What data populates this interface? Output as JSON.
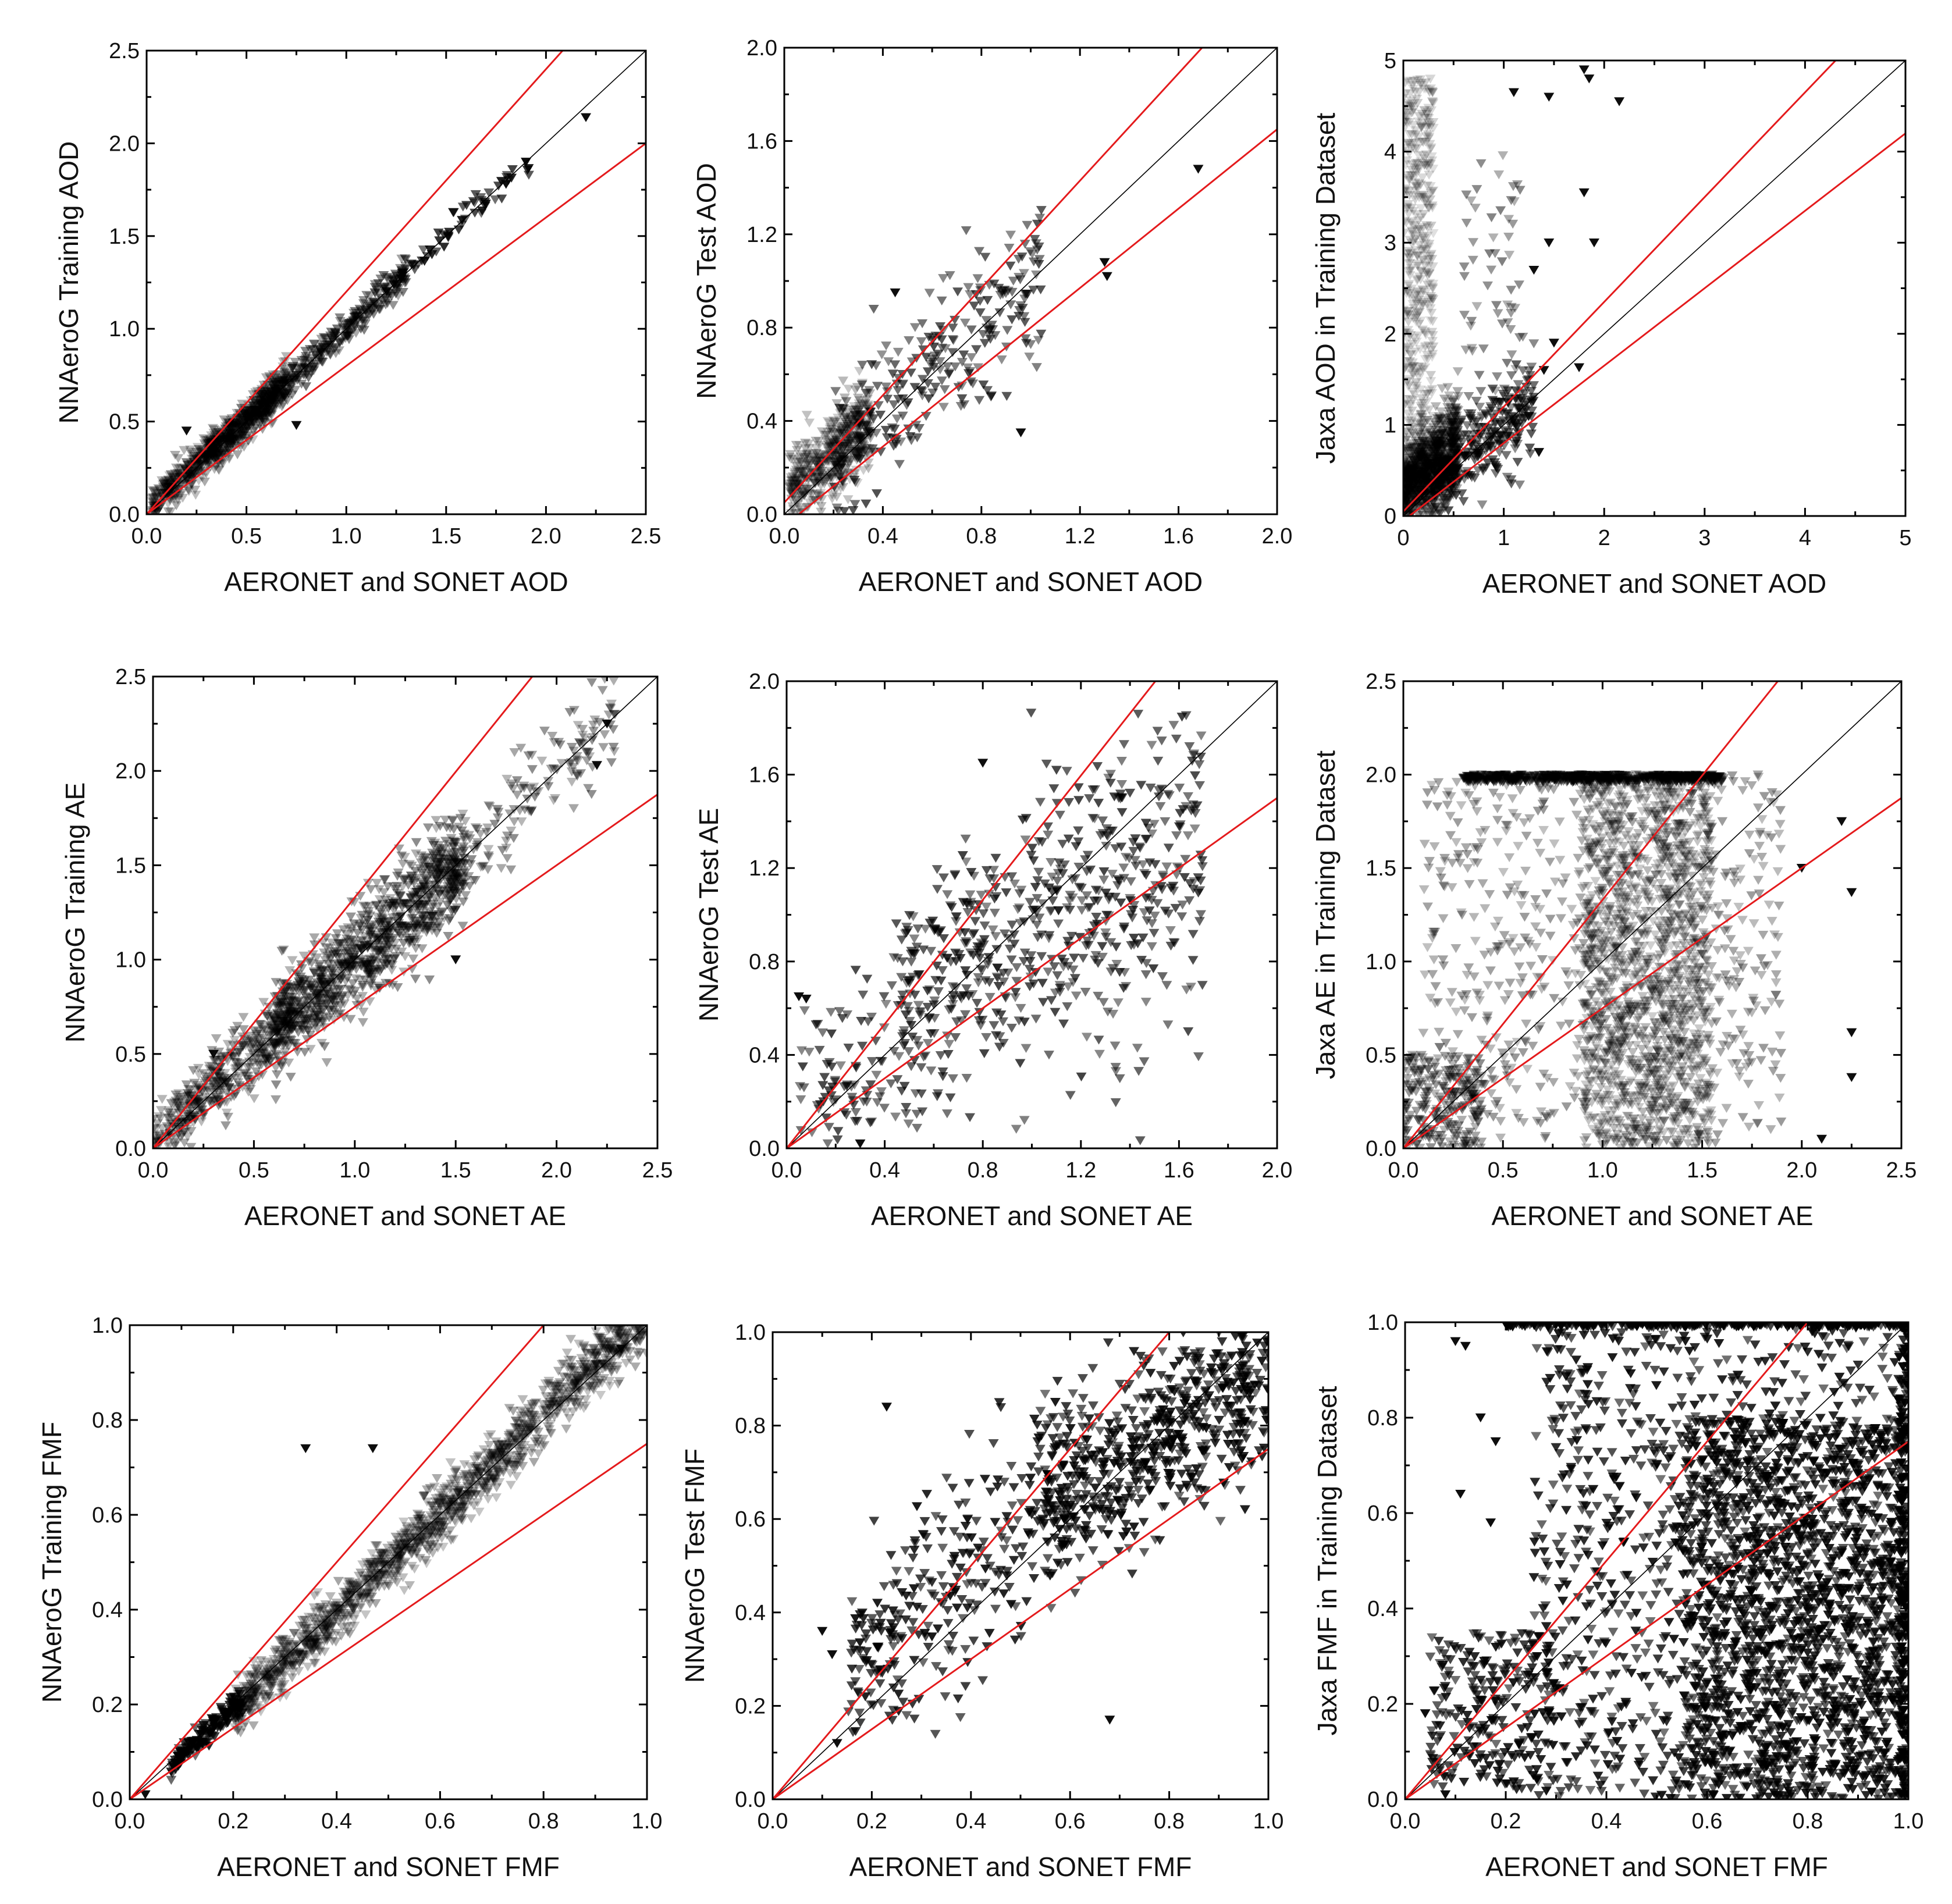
{
  "figure": {
    "colors": {
      "one_to_one": "#000000",
      "envelope": "#e41a1c",
      "marker": "#000000"
    },
    "marker": "downward-triangle"
  },
  "chart_data": [
    {
      "id": "training-aod",
      "type": "scatter",
      "title": "",
      "xlabel": "AERONET and SONET AOD",
      "ylabel": "NNAeroG Training AOD",
      "xlim": [
        0,
        2.5
      ],
      "ylim": [
        0,
        2.5
      ],
      "xticks": [
        "0.0",
        "0.5",
        "1.0",
        "1.5",
        "2.0",
        "2.5"
      ],
      "yticks": [
        "0.0",
        "0.5",
        "1.0",
        "1.5",
        "2.0",
        "2.5"
      ],
      "envelope_slopes": [
        1.2,
        0.8
      ],
      "one_to_one": true,
      "clusters": [
        {
          "x_range": [
            0.02,
            0.7
          ],
          "spread": 0.05,
          "slope": 1.0,
          "offset": 0.01,
          "n": 700,
          "opacity": 0.35
        },
        {
          "x_range": [
            0.3,
            1.3
          ],
          "spread": 0.035,
          "slope": 1.0,
          "offset": 0.0,
          "n": 420,
          "opacity": 0.55
        },
        {
          "x_range": [
            1.2,
            1.95
          ],
          "spread": 0.025,
          "slope": 1.0,
          "offset": 0.0,
          "n": 60,
          "opacity": 0.9
        }
      ],
      "points": [
        [
          2.2,
          2.14
        ],
        [
          1.8,
          1.78
        ],
        [
          1.9,
          1.9
        ],
        [
          0.75,
          0.48
        ],
        [
          0.2,
          0.45
        ]
      ]
    },
    {
      "id": "test-aod",
      "type": "scatter",
      "title": "",
      "xlabel": "AERONET and SONET AOD",
      "ylabel": "NNAeroG Test AOD",
      "xlim": [
        0,
        2.0
      ],
      "ylim": [
        0,
        2.0
      ],
      "xticks": [
        "0.0",
        "0.4",
        "0.8",
        "1.2",
        "1.6",
        "2.0"
      ],
      "yticks": [
        "0.0",
        "0.4",
        "0.8",
        "1.2",
        "1.6",
        "2.0"
      ],
      "envelope_slopes": [
        1.15,
        0.85
      ],
      "envelope_offsets": [
        0.05,
        -0.05
      ],
      "one_to_one": true,
      "clusters": [
        {
          "x_range": [
            0.02,
            0.35
          ],
          "spread": 0.09,
          "slope": 0.9,
          "offset": 0.08,
          "n": 520,
          "opacity": 0.3
        },
        {
          "x_range": [
            0.2,
            1.05
          ],
          "spread": 0.13,
          "slope": 0.95,
          "offset": 0.05,
          "n": 260,
          "opacity": 0.7
        }
      ],
      "points": [
        [
          1.68,
          1.48
        ],
        [
          1.3,
          1.08
        ],
        [
          1.31,
          1.02
        ],
        [
          0.96,
          0.35
        ],
        [
          0.45,
          0.95
        ]
      ]
    },
    {
      "id": "jaxa-aod",
      "type": "scatter",
      "title": "",
      "xlabel": "AERONET and SONET AOD",
      "ylabel": "Jaxa AOD in Training Dataset",
      "xlim": [
        0,
        5
      ],
      "ylim": [
        0,
        5
      ],
      "xticks": [
        "0",
        "1",
        "2",
        "3",
        "4",
        "5"
      ],
      "yticks": [
        "0",
        "1",
        "2",
        "3",
        "4",
        "5"
      ],
      "envelope_slopes": [
        1.15,
        0.85
      ],
      "envelope_offsets": [
        0.05,
        -0.05
      ],
      "one_to_one": true,
      "clusters": [
        {
          "x_range": [
            0.0,
            0.55
          ],
          "spread": 0.25,
          "slope": 0.9,
          "offset": 0.25,
          "n": 1100,
          "opacity": 0.35
        },
        {
          "x_range": [
            0.0,
            0.3
          ],
          "y_range": [
            1.0,
            4.8
          ],
          "n": 420,
          "opacity": 0.2
        },
        {
          "x_range": [
            0.3,
            1.3
          ],
          "spread": 0.2,
          "slope": 0.9,
          "offset": 0.1,
          "n": 260,
          "opacity": 0.7
        },
        {
          "x_range": [
            0.6,
            1.2
          ],
          "y_range": [
            1.0,
            4.0
          ],
          "n": 60,
          "opacity": 0.5
        }
      ],
      "points": [
        [
          1.8,
          4.9
        ],
        [
          1.85,
          4.8
        ],
        [
          1.45,
          4.6
        ],
        [
          1.1,
          4.65
        ],
        [
          2.15,
          4.55
        ],
        [
          1.8,
          3.55
        ],
        [
          1.45,
          3.0
        ],
        [
          1.3,
          2.7
        ],
        [
          1.5,
          1.9
        ],
        [
          1.4,
          1.6
        ],
        [
          1.75,
          1.63
        ],
        [
          1.9,
          3.0
        ],
        [
          1.35,
          0.7
        ]
      ]
    },
    {
      "id": "training-ae",
      "type": "scatter",
      "title": "",
      "xlabel": "AERONET and SONET AE",
      "ylabel": "NNAeroG Training AE",
      "xlim": [
        0,
        2.5
      ],
      "ylim": [
        0,
        2.5
      ],
      "xticks": [
        "0.0",
        "0.5",
        "1.0",
        "1.5",
        "2.0",
        "2.5"
      ],
      "yticks": [
        "0.0",
        "0.5",
        "1.0",
        "1.5",
        "2.0",
        "2.5"
      ],
      "envelope_slopes": [
        1.33,
        0.75
      ],
      "envelope_offsets": [
        0,
        0
      ],
      "one_to_one": true,
      "clusters": [
        {
          "x_range": [
            0.0,
            0.7
          ],
          "spread": 0.08,
          "slope": 1.0,
          "offset": 0.02,
          "n": 450,
          "opacity": 0.4
        },
        {
          "x_range": [
            0.6,
            1.55
          ],
          "spread": 0.1,
          "slope": 0.95,
          "offset": 0.05,
          "n": 1000,
          "opacity": 0.45
        },
        {
          "x_range": [
            1.4,
            2.3
          ],
          "spread": 0.08,
          "slope": 1.0,
          "offset": 0.0,
          "n": 160,
          "opacity": 0.45
        }
      ],
      "points": [
        [
          2.25,
          2.25
        ],
        [
          2.2,
          2.03
        ],
        [
          0.3,
          0.5
        ],
        [
          1.5,
          1.0
        ]
      ]
    },
    {
      "id": "test-ae",
      "type": "scatter",
      "title": "",
      "xlabel": "AERONET and SONET AE",
      "ylabel": "NNAeroG Test AE",
      "xlim": [
        0,
        2.0
      ],
      "ylim": [
        0,
        2.0
      ],
      "xticks": [
        "0.0",
        "0.4",
        "0.8",
        "1.2",
        "1.6",
        "2.0"
      ],
      "yticks": [
        "0.0",
        "0.4",
        "0.8",
        "1.2",
        "1.6",
        "2.0"
      ],
      "envelope_slopes": [
        1.33,
        0.75
      ],
      "envelope_offsets": [
        0,
        0
      ],
      "one_to_one": true,
      "clusters": [
        {
          "x_range": [
            0.05,
            0.55
          ],
          "spread": 0.2,
          "slope": 0.9,
          "offset": 0.1,
          "n": 120,
          "opacity": 0.75
        },
        {
          "x_range": [
            0.45,
            1.7
          ],
          "spread": 0.22,
          "slope": 0.55,
          "offset": 0.35,
          "n": 600,
          "opacity": 0.75
        }
      ],
      "points": [
        [
          0.05,
          0.65
        ],
        [
          0.08,
          0.64
        ],
        [
          0.3,
          0.02
        ],
        [
          0.8,
          1.65
        ]
      ]
    },
    {
      "id": "jaxa-ae",
      "type": "scatter",
      "title": "",
      "xlabel": "AERONET and SONET AE",
      "ylabel": "Jaxa AE in Training Dataset",
      "xlim": [
        0,
        2.5
      ],
      "ylim": [
        0,
        2.5
      ],
      "xticks": [
        "0.0",
        "0.5",
        "1.0",
        "1.5",
        "2.0",
        "2.5"
      ],
      "yticks": [
        "0.0",
        "0.5",
        "1.0",
        "1.5",
        "2.0",
        "2.5"
      ],
      "envelope_slopes": [
        1.33,
        0.75
      ],
      "envelope_offsets": [
        0,
        0
      ],
      "one_to_one": true,
      "clusters": [
        {
          "x_range": [
            0.3,
            1.6
          ],
          "y_range": [
            1.96,
            2.0
          ],
          "n": 500,
          "opacity": 0.6
        },
        {
          "x_range": [
            0.9,
            1.55
          ],
          "y_range": [
            0.0,
            2.0
          ],
          "n": 1500,
          "opacity": 0.3
        },
        {
          "x_range": [
            0.1,
            1.9
          ],
          "y_range": [
            0.0,
            2.0
          ],
          "n": 700,
          "opacity": 0.4
        },
        {
          "x_range": [
            0.0,
            0.4
          ],
          "y_range": [
            0.0,
            0.5
          ],
          "n": 220,
          "opacity": 0.45
        }
      ],
      "points": [
        [
          2.25,
          1.37
        ],
        [
          2.25,
          0.62
        ],
        [
          2.25,
          0.38
        ],
        [
          2.1,
          0.05
        ],
        [
          2.0,
          1.5
        ],
        [
          2.2,
          1.75
        ]
      ]
    },
    {
      "id": "training-fmf",
      "type": "scatter",
      "title": "",
      "xlabel": "AERONET and SONET FMF",
      "ylabel": "NNAeroG Training FMF",
      "xlim": [
        0,
        1.0
      ],
      "ylim": [
        0,
        1.0
      ],
      "xticks": [
        "0.0",
        "0.2",
        "0.4",
        "0.6",
        "0.8",
        "1.0"
      ],
      "yticks": [
        "0.0",
        "0.2",
        "0.4",
        "0.6",
        "0.8",
        "1.0"
      ],
      "envelope_slopes": [
        1.25,
        0.75
      ],
      "envelope_offsets": [
        0,
        0
      ],
      "one_to_one": true,
      "clusters": [
        {
          "x_range": [
            0.08,
            0.22
          ],
          "spread": 0.012,
          "slope": 1.0,
          "offset": -0.01,
          "n": 160,
          "opacity": 0.9
        },
        {
          "x_range": [
            0.2,
            1.0
          ],
          "spread": 0.025,
          "slope": 1.05,
          "offset": -0.03,
          "n": 1500,
          "opacity": 0.35
        }
      ],
      "points": [
        [
          0.34,
          0.74
        ],
        [
          0.47,
          0.74
        ],
        [
          0.03,
          0.01
        ],
        [
          0.95,
          0.95
        ]
      ]
    },
    {
      "id": "test-fmf",
      "type": "scatter",
      "title": "",
      "xlabel": "AERONET and SONET FMF",
      "ylabel": "NNAeroG Test FMF",
      "xlim": [
        0,
        1.0
      ],
      "ylim": [
        0,
        1.0
      ],
      "xticks": [
        "0.0",
        "0.2",
        "0.4",
        "0.6",
        "0.8",
        "1.0"
      ],
      "yticks": [
        "0.0",
        "0.2",
        "0.4",
        "0.6",
        "0.8",
        "1.0"
      ],
      "envelope_slopes": [
        1.25,
        0.75
      ],
      "envelope_offsets": [
        0,
        0
      ],
      "one_to_one": true,
      "clusters": [
        {
          "x_range": [
            0.15,
            0.6
          ],
          "spread": 0.1,
          "slope": 1.0,
          "offset": 0.1,
          "n": 320,
          "opacity": 0.9
        },
        {
          "x_range": [
            0.55,
            1.0
          ],
          "spread": 0.08,
          "slope": 0.6,
          "offset": 0.3,
          "n": 600,
          "opacity": 0.9
        }
      ],
      "points": [
        [
          0.1,
          0.36
        ],
        [
          0.12,
          0.31
        ],
        [
          0.13,
          0.12
        ],
        [
          0.68,
          0.17
        ],
        [
          0.23,
          0.84
        ]
      ]
    },
    {
      "id": "jaxa-fmf",
      "type": "scatter",
      "title": "",
      "xlabel": "AERONET and SONET FMF",
      "ylabel": "Jaxa FMF in Training Dataset",
      "xlim": [
        0,
        1.0
      ],
      "ylim": [
        0,
        1.0
      ],
      "xticks": [
        "0.0",
        "0.2",
        "0.4",
        "0.6",
        "0.8",
        "1.0"
      ],
      "yticks": [
        "0.0",
        "0.2",
        "0.4",
        "0.6",
        "0.8",
        "1.0"
      ],
      "envelope_slopes": [
        1.25,
        0.75
      ],
      "envelope_offsets": [
        0,
        0
      ],
      "one_to_one": true,
      "clusters": [
        {
          "x_range": [
            0.2,
            1.0
          ],
          "y_range": [
            0.99,
            1.0
          ],
          "n": 260,
          "opacity": 1.0
        },
        {
          "x_range": [
            0.55,
            1.0
          ],
          "y_range": [
            0.0,
            0.8
          ],
          "n": 1500,
          "opacity": 0.9
        },
        {
          "x_range": [
            0.25,
            1.0
          ],
          "y_range": [
            0.0,
            1.0
          ],
          "n": 1100,
          "opacity": 0.9
        },
        {
          "x_range": [
            0.05,
            0.3
          ],
          "y_range": [
            0.02,
            0.35
          ],
          "n": 260,
          "opacity": 0.9
        },
        {
          "x_range": [
            0.98,
            1.0
          ],
          "y_range": [
            0.0,
            1.0
          ],
          "n": 200,
          "opacity": 1.0
        }
      ],
      "points": [
        [
          0.04,
          0.18
        ],
        [
          0.1,
          0.96
        ],
        [
          0.12,
          0.95
        ],
        [
          0.11,
          0.64
        ],
        [
          0.17,
          0.58
        ],
        [
          0.18,
          0.75
        ],
        [
          0.15,
          0.8
        ],
        [
          0.08,
          0.01
        ]
      ]
    }
  ]
}
